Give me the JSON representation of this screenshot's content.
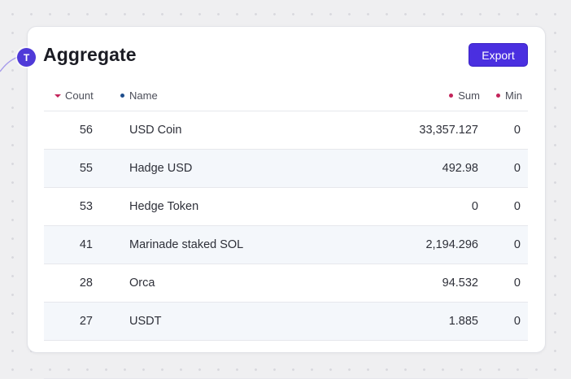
{
  "avatar": {
    "initial": "T",
    "color": "#4f3ad8"
  },
  "panel": {
    "title": "Aggregate",
    "export_label": "Export"
  },
  "table": {
    "columns": {
      "count": {
        "label": "Count",
        "marker": "sort-desc-caret",
        "color": "#c3245a"
      },
      "name": {
        "label": "Name",
        "marker": "dot",
        "color": "#1f4e8c"
      },
      "sum": {
        "label": "Sum",
        "marker": "dot",
        "color": "#c3245a"
      },
      "min": {
        "label": "Min",
        "marker": "dot",
        "color": "#c3245a"
      }
    },
    "rows": [
      {
        "count": "56",
        "name": "USD Coin",
        "sum": "33,357.127",
        "min": "0"
      },
      {
        "count": "55",
        "name": "Hadge USD",
        "sum": "492.98",
        "min": "0"
      },
      {
        "count": "53",
        "name": "Hedge Token",
        "sum": "0",
        "min": "0"
      },
      {
        "count": "41",
        "name": "Marinade staked SOL",
        "sum": "2,194.296",
        "min": "0"
      },
      {
        "count": "28",
        "name": "Orca",
        "sum": "94.532",
        "min": "0"
      },
      {
        "count": "27",
        "name": "USDT",
        "sum": "1.885",
        "min": "0"
      },
      {
        "count": "",
        "name": "",
        "sum": "",
        "min": ""
      }
    ]
  },
  "colors": {
    "accent": "#4a2fe0",
    "row_alt_bg": "#f4f7fb",
    "page_bg": "#efeff1"
  }
}
